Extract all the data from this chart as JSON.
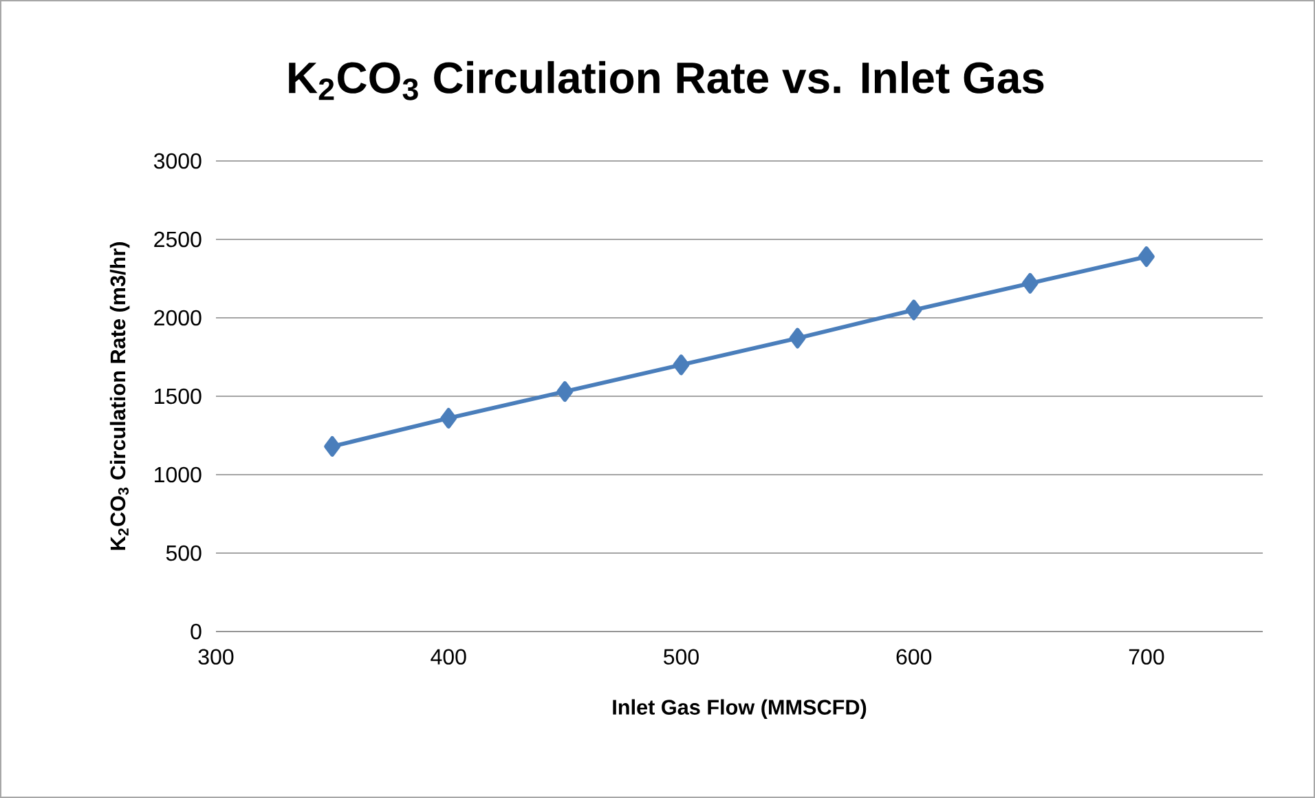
{
  "chart_data": {
    "type": "line",
    "title": "K$_{2}$CO$_{3}$ Circulation Rate vs. Inlet Gas",
    "xlabel": "Inlet Gas Flow (MMSCFD)",
    "ylabel": "K$_{2}$CO$_{3}$ Circulation Rate (m3/hr)",
    "x": [
      350,
      400,
      450,
      500,
      550,
      600,
      650,
      700
    ],
    "series": [
      {
        "color": "#4a7ebb",
        "values": [
          1180,
          1360,
          1530,
          1700,
          1870,
          2050,
          2220,
          2390
        ]
      }
    ],
    "xlim": [
      300,
      750
    ],
    "xticks": [
      300,
      400,
      500,
      600,
      700
    ],
    "ylim": [
      0,
      3000
    ],
    "yticks": [
      0,
      500,
      1000,
      1500,
      2000,
      2500,
      3000
    ],
    "grid": "y",
    "marker": "diamond",
    "line_style": "solid"
  }
}
